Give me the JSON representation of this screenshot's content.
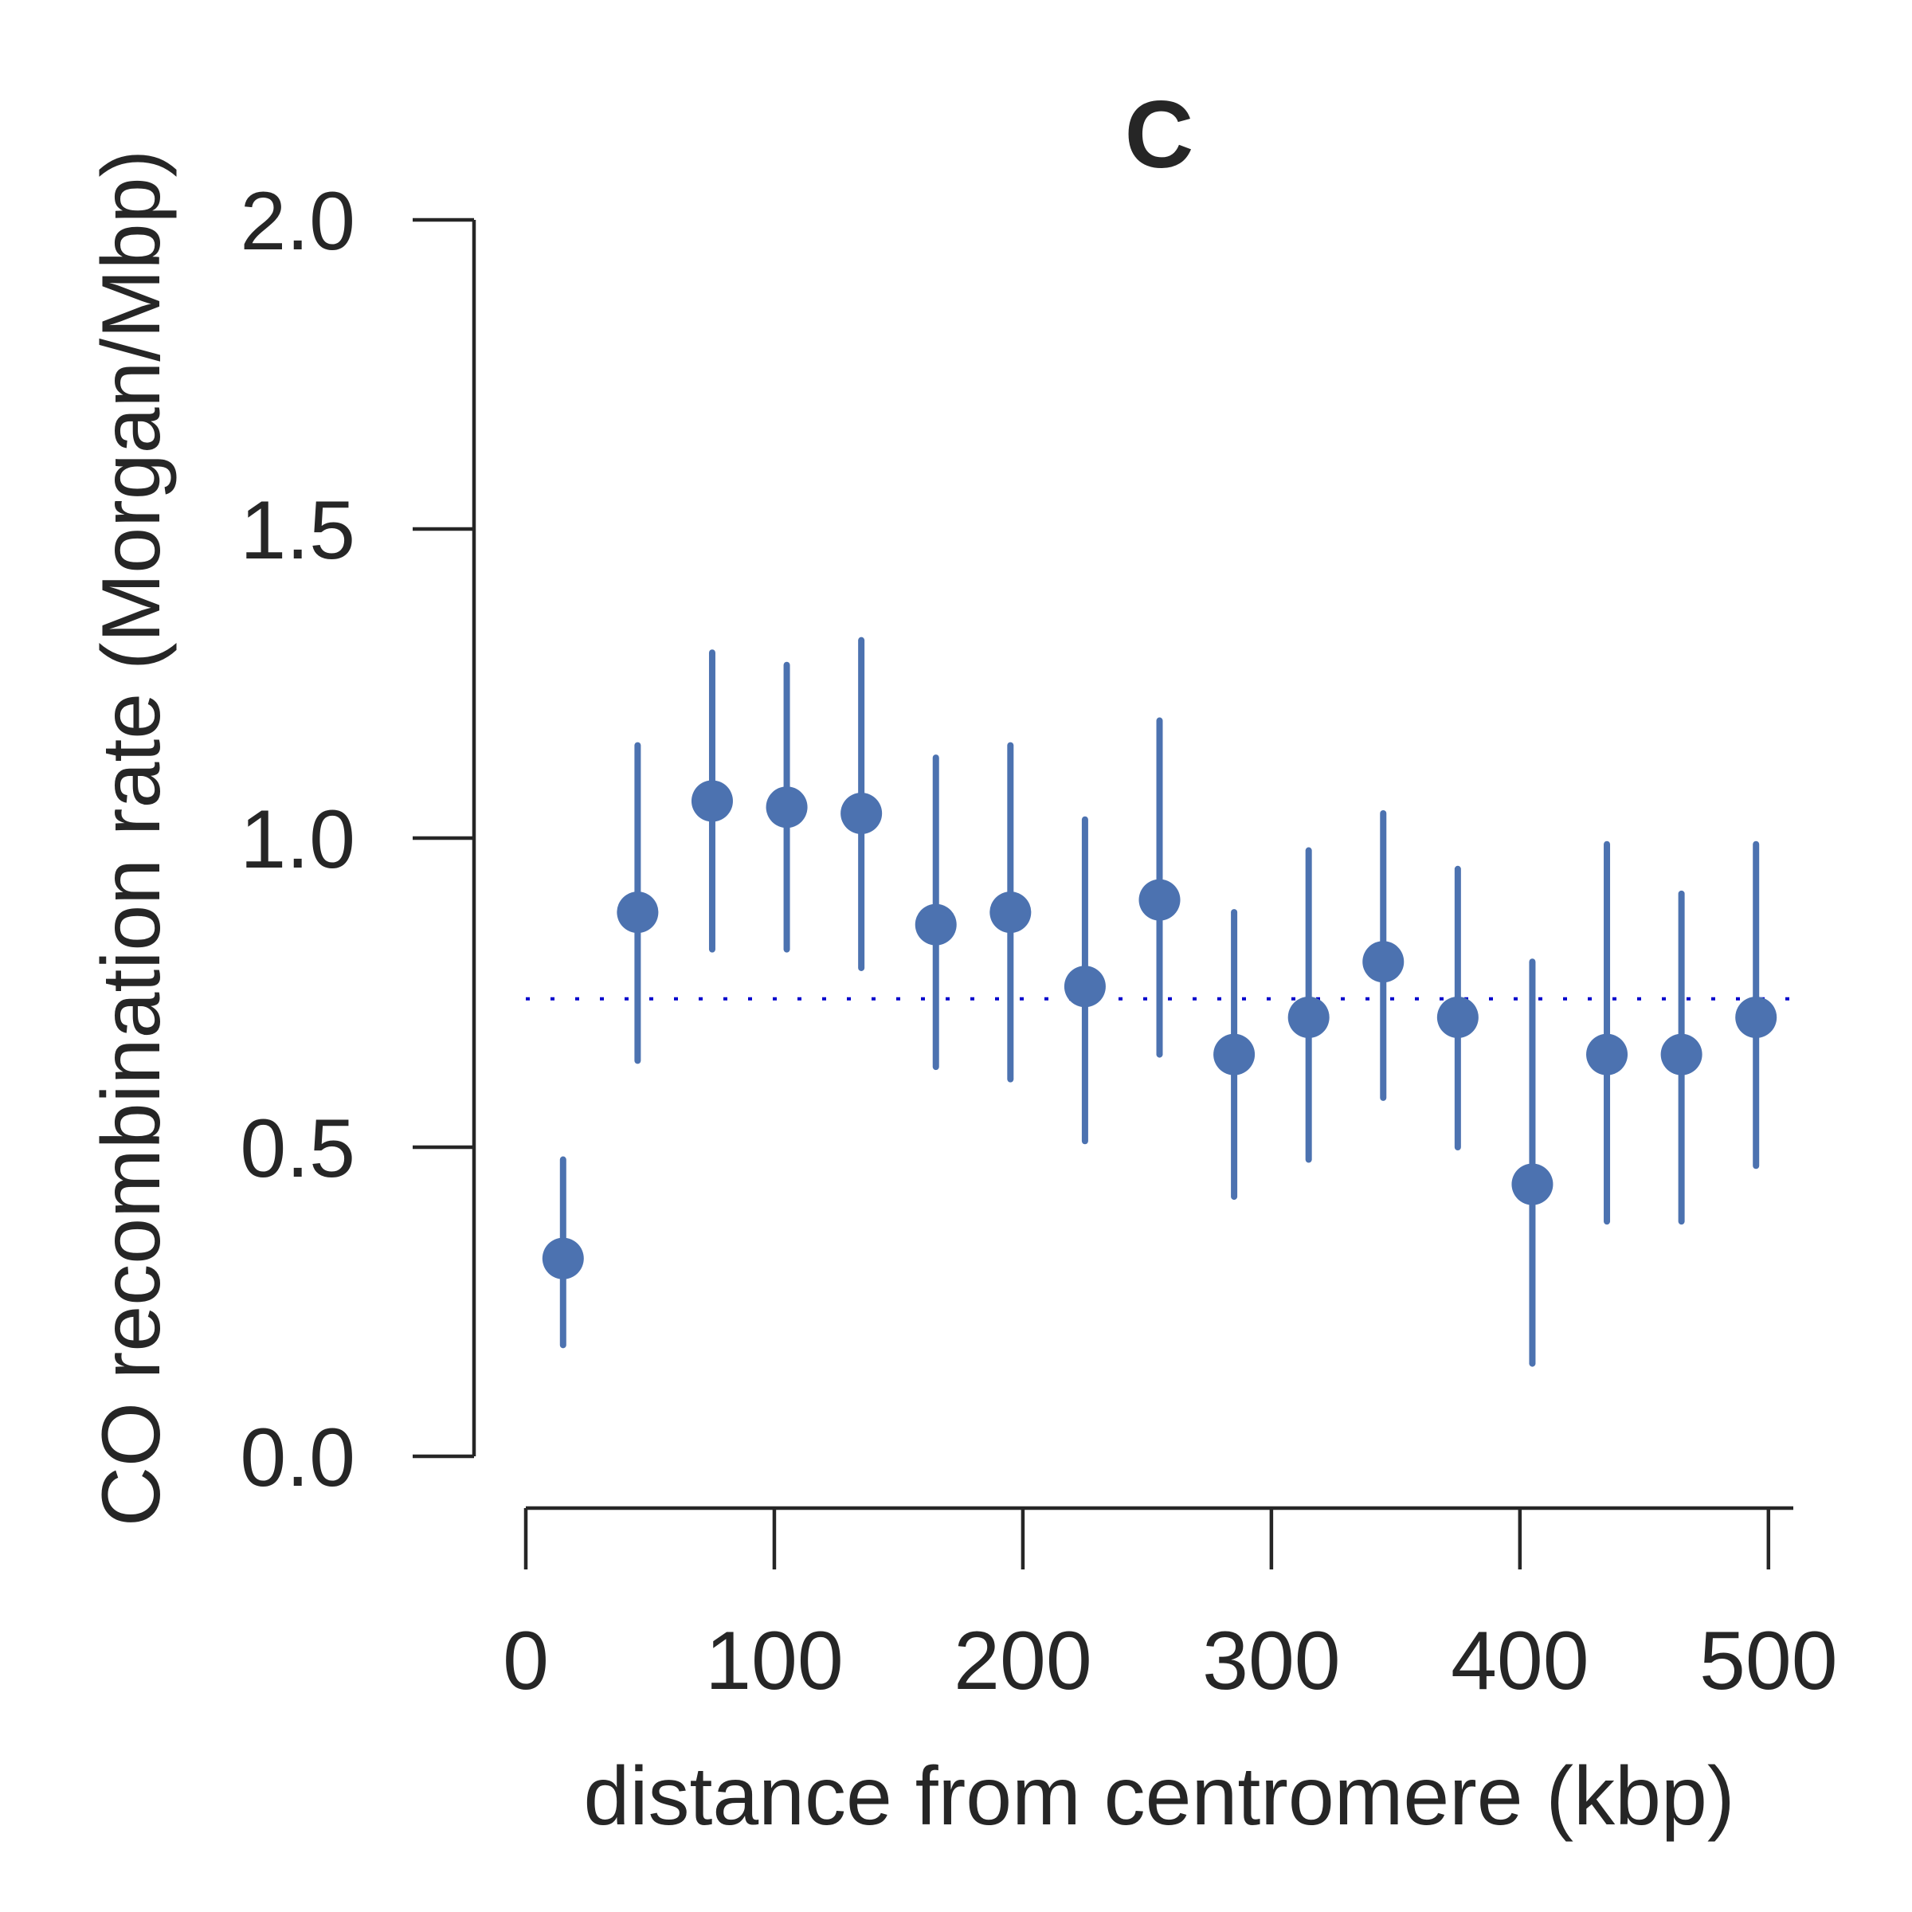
{
  "chart_data": {
    "type": "scatter",
    "title": "C",
    "xlabel": "distance from centromere (kbp)",
    "ylabel": "CO recombination rate (Morgan/Mbp)",
    "xlim": [
      0,
      510
    ],
    "ylim": [
      0,
      2.0
    ],
    "xticks": [
      0,
      100,
      200,
      300,
      400,
      500
    ],
    "xtick_labels": [
      "0",
      "100",
      "200",
      "300",
      "400",
      "500"
    ],
    "yticks": [
      0.0,
      0.5,
      1.0,
      1.5,
      2.0
    ],
    "ytick_labels": [
      "0.0",
      "0.5",
      "1.0",
      "1.5",
      "2.0"
    ],
    "grid": false,
    "reference_line": {
      "y": 0.74,
      "style": "dotted",
      "color": "#0000cc"
    },
    "series": [
      {
        "color": "#4c72b0",
        "x": [
          15,
          45,
          75,
          105,
          135,
          165,
          195,
          225,
          255,
          285,
          315,
          345,
          375,
          405,
          435,
          465,
          495
        ],
        "y": [
          0.32,
          0.88,
          1.06,
          1.05,
          1.04,
          0.86,
          0.88,
          0.76,
          0.9,
          0.65,
          0.71,
          0.8,
          0.71,
          0.44,
          0.65,
          0.65,
          0.71
        ],
        "y_lower": [
          0.18,
          0.64,
          0.82,
          0.82,
          0.79,
          0.63,
          0.61,
          0.51,
          0.65,
          0.42,
          0.48,
          0.58,
          0.5,
          0.15,
          0.38,
          0.38,
          0.47
        ],
        "y_upper": [
          0.48,
          1.15,
          1.3,
          1.28,
          1.32,
          1.13,
          1.15,
          1.03,
          1.19,
          0.88,
          0.98,
          1.04,
          0.95,
          0.8,
          0.99,
          0.91,
          0.99
        ]
      }
    ]
  }
}
